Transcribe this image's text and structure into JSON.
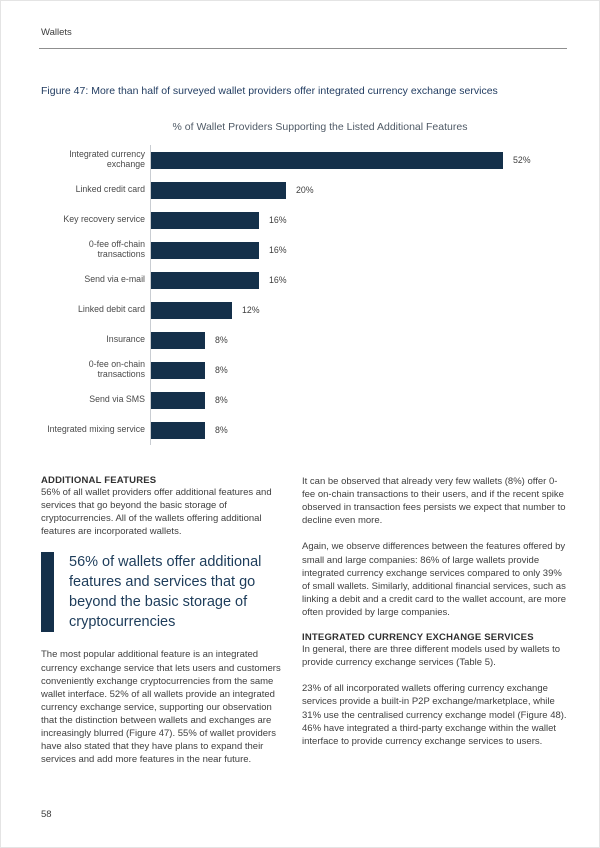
{
  "page": {
    "header": "Wallets",
    "page_number": "58"
  },
  "figure": {
    "caption": "Figure 47: More than half of surveyed wallet providers offer integrated currency exchange services"
  },
  "chart_data": {
    "type": "bar",
    "orientation": "horizontal",
    "title": "% of Wallet Providers Supporting the Listed Additional Features",
    "categories": [
      "Integrated currency exchange",
      "Linked credit card",
      "Key recovery service",
      "0-fee off-chain transactions",
      "Send via e-mail",
      "Linked debit card",
      "Insurance",
      "0-fee on-chain transactions",
      "Send via SMS",
      "Integrated mixing service"
    ],
    "values": [
      52,
      20,
      16,
      16,
      16,
      12,
      8,
      8,
      8,
      8
    ],
    "value_labels": [
      "52%",
      "20%",
      "16%",
      "16%",
      "16%",
      "12%",
      "8%",
      "8%",
      "8%",
      "8%"
    ],
    "xlabel": "",
    "ylabel": "",
    "xlim": [
      0,
      60
    ],
    "grid": false,
    "legend": false
  },
  "content": {
    "left": {
      "heading": "ADDITIONAL FEATURES",
      "para1": "56% of all wallet providers offer additional features and services that go beyond the basic storage of cryptocurrencies. All of the wallets offering additional features are incorporated wallets.",
      "quote": "56% of wallets offer additional features and services that go beyond the basic storage of cryptocurrencies",
      "para2": "The most popular additional feature is an integrated currency exchange service that lets users and customers conveniently exchange cryptocurrencies from the same wallet interface. 52% of all wallets provide an integrated currency exchange service, supporting our observation that the distinction between wallets and exchanges are increasingly blurred (Figure 47). 55% of wallet providers have also stated that they have plans to expand their services and add more features in the near future."
    },
    "right": {
      "para1": "It can be observed that already very few wallets (8%) offer 0-fee on-chain transactions to their users, and if the recent spike observed in transaction fees persists we expect that number to decline even more.",
      "para2": "Again, we observe differences between the features offered by small and large companies: 86% of large wallets provide integrated currency exchange services compared to only 39% of small wallets. Similarly, additional financial services, such as linking a debit and a credit card to the wallet account, are more often provided by large companies.",
      "heading": "INTEGRATED CURRENCY EXCHANGE SERVICES",
      "para3": "In general, there are three different models used by wallets to provide currency exchange services (Table 5).",
      "para4": "23% of all incorporated wallets offering currency exchange services provide a built-in P2P exchange/marketplace, while 31% use the centralised currency exchange model (Figure 48). 46% have integrated a third-party exchange within the wallet interface to provide currency exchange services to users."
    }
  },
  "colors": {
    "bar": "#14304a",
    "caption": "#1f3a5f",
    "quote_text": "#1d3c5a",
    "quote_bar": "#14304a",
    "body_text": "#404040"
  }
}
